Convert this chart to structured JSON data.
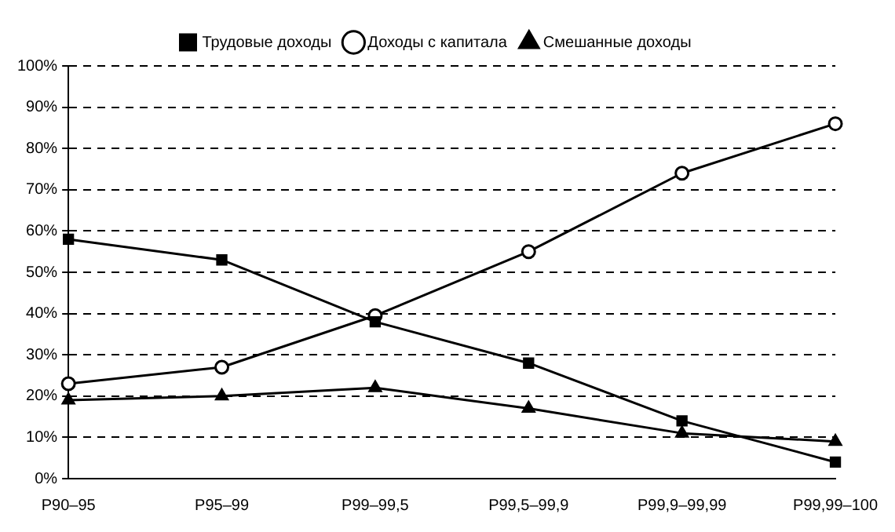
{
  "chart_data": {
    "type": "line",
    "categories": [
      "P90–95",
      "P95–99",
      "P99–99,5",
      "P99,5–99,9",
      "P99,9–99,99",
      "P99,99–100"
    ],
    "series": [
      {
        "name": "Трудовые доходы",
        "color": "#000000",
        "marker": "square",
        "values": [
          58,
          53,
          38,
          28,
          14,
          4
        ]
      },
      {
        "name": "Доходы с капитала",
        "color": "#000000",
        "marker": "circle",
        "values": [
          23,
          27,
          39.5,
          55,
          74,
          86
        ]
      },
      {
        "name": "Смешанные доходы",
        "color": "#000000",
        "marker": "triangle",
        "values": [
          19,
          20,
          22,
          17,
          11,
          9
        ]
      }
    ],
    "ylim": [
      0,
      100
    ],
    "yticks": [
      {
        "value": 0,
        "label": "0%"
      },
      {
        "value": 10,
        "label": "10%"
      },
      {
        "value": 20,
        "label": "20%"
      },
      {
        "value": 30,
        "label": "30%"
      },
      {
        "value": 40,
        "label": "40%"
      },
      {
        "value": 50,
        "label": "50%"
      },
      {
        "value": 60,
        "label": "60%"
      },
      {
        "value": 70,
        "label": "70%"
      },
      {
        "value": 80,
        "label": "80%"
      },
      {
        "value": 90,
        "label": "90%"
      },
      {
        "value": 100,
        "label": "100%"
      }
    ],
    "grid": "y",
    "line_style": "solid",
    "legend": "top"
  }
}
